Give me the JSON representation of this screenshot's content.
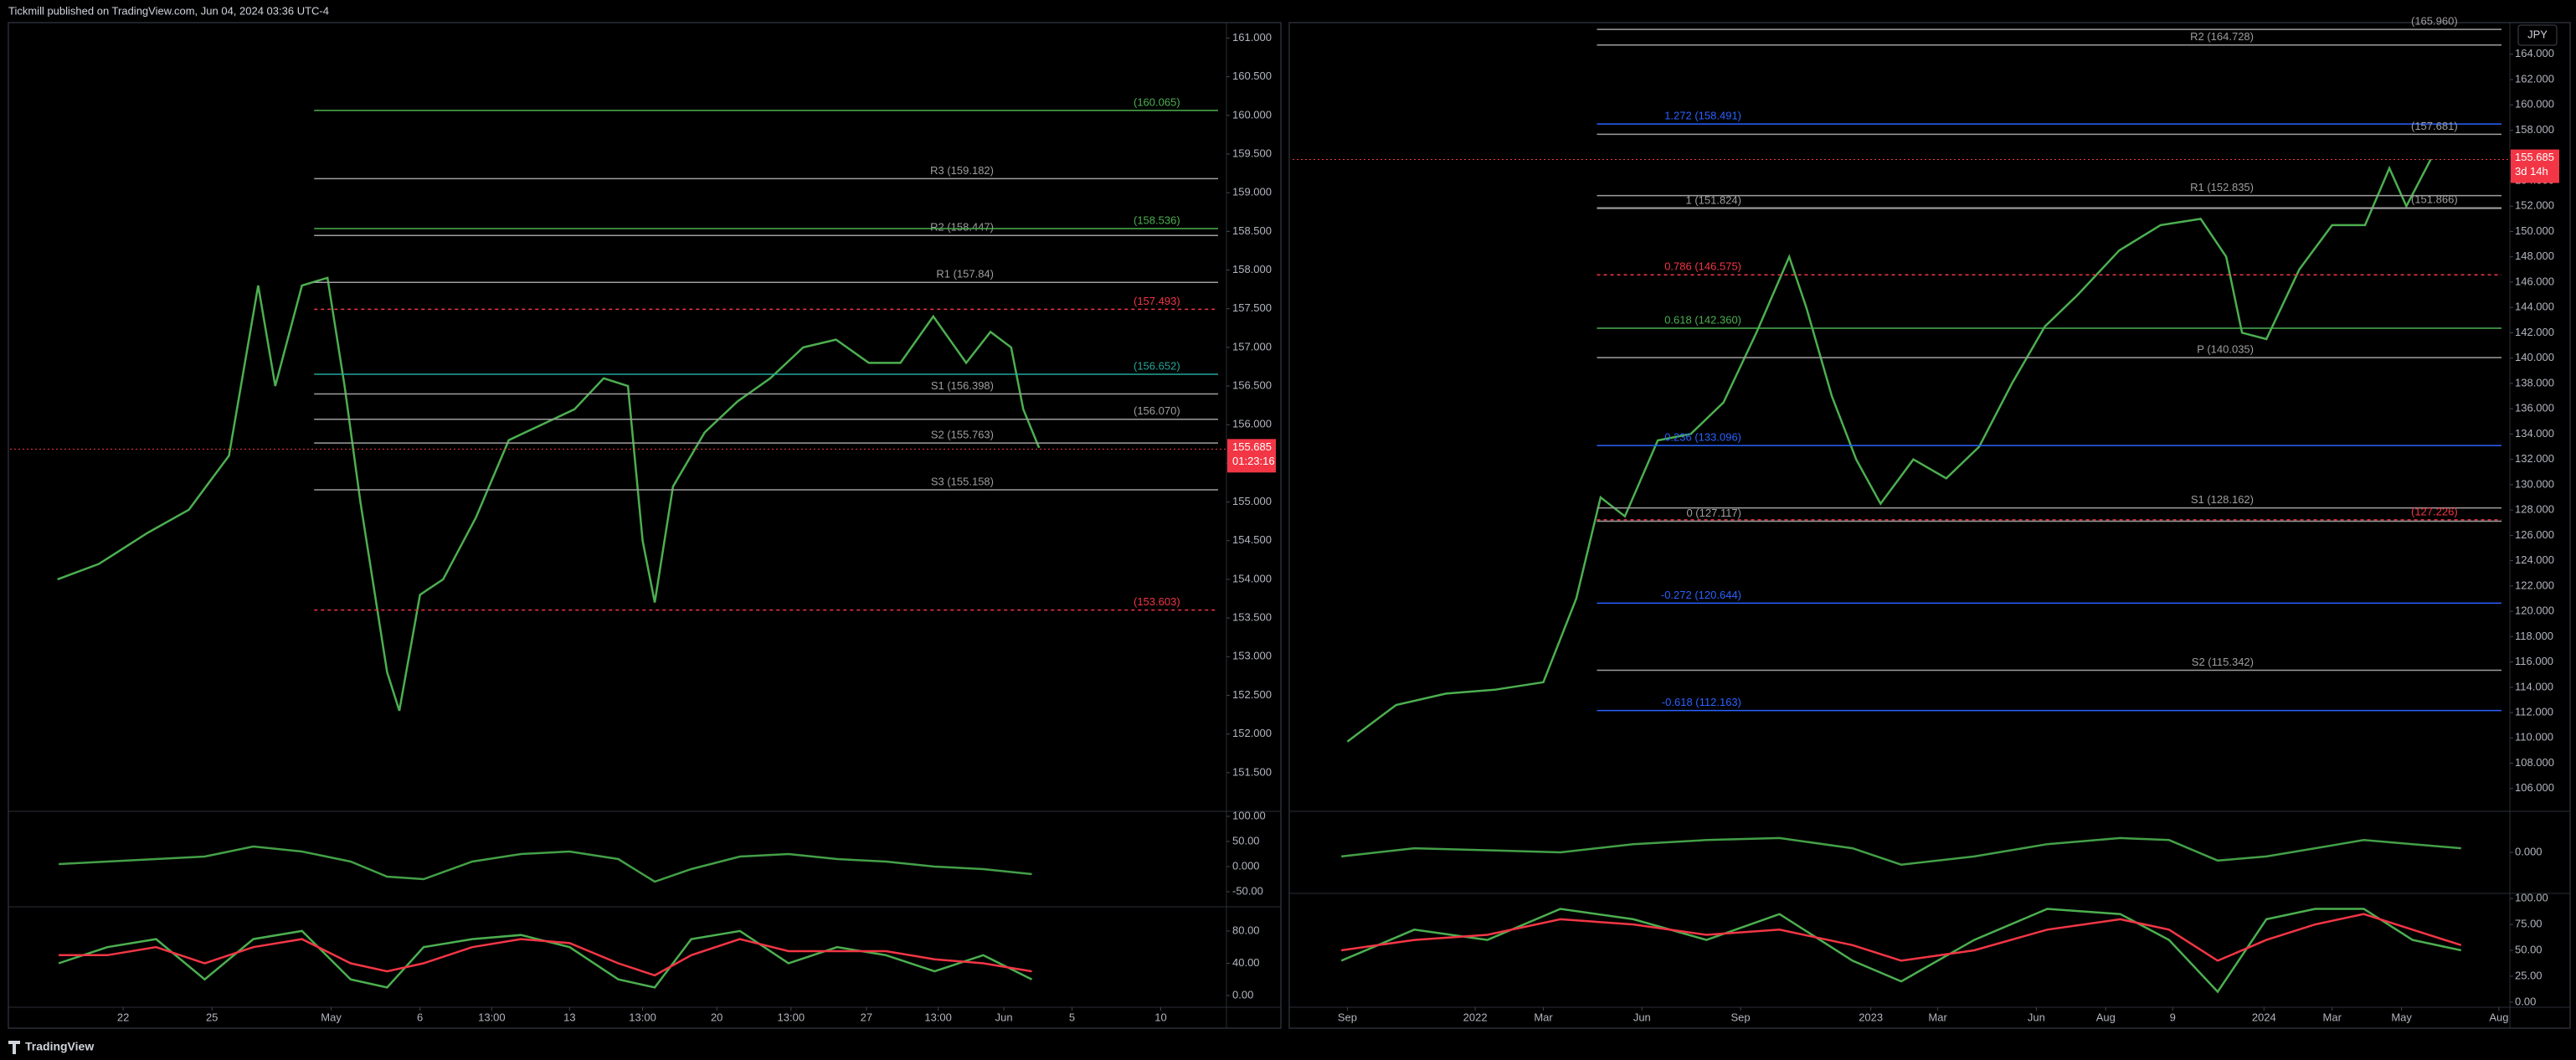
{
  "header": {
    "title": "Tickmill published on TradingView.com, Jun 04, 2024 03:36 UTC-4"
  },
  "footer": {
    "brand": "TradingView"
  },
  "chart_data": [
    {
      "type": "line",
      "xlim": [
        0,
        100
      ],
      "xticks": [
        {
          "value": 9.3,
          "label": "22"
        },
        {
          "value": 16.6,
          "label": "25"
        },
        {
          "value": 26.4,
          "label": "May"
        },
        {
          "value": 33.7,
          "label": "6"
        },
        {
          "value": 39.6,
          "label": "13:00"
        },
        {
          "value": 46.0,
          "label": "13"
        },
        {
          "value": 52.0,
          "label": "13:00"
        },
        {
          "value": 58.1,
          "label": "20"
        },
        {
          "value": 64.2,
          "label": "13:00"
        },
        {
          "value": 70.4,
          "label": "27"
        },
        {
          "value": 76.3,
          "label": "13:00"
        },
        {
          "value": 81.7,
          "label": "Jun"
        },
        {
          "value": 87.3,
          "label": "5"
        },
        {
          "value": 94.6,
          "label": "10"
        }
      ],
      "ylim": [
        151.0,
        161.2
      ],
      "yticks": [
        {
          "value": 151.5,
          "label": "151.500"
        },
        {
          "value": 152,
          "label": "152.000"
        },
        {
          "value": 152.5,
          "label": "152.500"
        },
        {
          "value": 153,
          "label": "153.000"
        },
        {
          "value": 153.5,
          "label": "153.500"
        },
        {
          "value": 154,
          "label": "154.000"
        },
        {
          "value": 154.5,
          "label": "154.500"
        },
        {
          "value": 155,
          "label": "155.000"
        },
        {
          "value": 155.5,
          "label": "155.500"
        },
        {
          "value": 156,
          "label": "156.000"
        },
        {
          "value": 156.5,
          "label": "156.500"
        },
        {
          "value": 157,
          "label": "157.000"
        },
        {
          "value": 157.5,
          "label": "157.500"
        },
        {
          "value": 158,
          "label": "158.000"
        },
        {
          "value": 158.5,
          "label": "158.500"
        },
        {
          "value": 159,
          "label": "159.000"
        },
        {
          "value": 159.5,
          "label": "159.500"
        },
        {
          "value": 160,
          "label": "160.000"
        },
        {
          "value": 160.5,
          "label": "160.500"
        },
        {
          "value": 161,
          "label": "161.000"
        }
      ],
      "grid": false,
      "x": [
        3.9,
        7.3,
        11.3,
        14.7,
        18,
        20.4,
        21.8,
        24,
        26.1,
        27.5,
        28.8,
        31,
        32,
        33.7,
        35.6,
        38.3,
        41,
        43.7,
        46.4,
        48.8,
        50.8,
        52,
        53,
        54.5,
        57.1,
        59.8,
        62.5,
        65.2,
        67.9,
        70.6,
        73.2,
        75.9,
        78.6,
        80.6,
        82.3,
        83.3,
        84.6
      ],
      "series": [
        {
          "color": "#4caf50",
          "values": [
            154.0,
            154.2,
            154.6,
            154.9,
            155.6,
            157.8,
            156.5,
            157.8,
            157.9,
            156.5,
            155.0,
            152.8,
            152.3,
            153.8,
            154.0,
            154.8,
            155.8,
            156.0,
            156.2,
            156.6,
            156.5,
            154.5,
            153.7,
            155.2,
            155.9,
            156.3,
            156.6,
            157.0,
            157.1,
            156.8,
            156.8,
            157.4,
            156.8,
            157.2,
            157.0,
            156.2,
            155.7
          ]
        }
      ],
      "last_price": 155.685,
      "countdown": "01:23:16",
      "pivots": [
        {
          "label": "R3 (159.182)",
          "value": 159.182,
          "color": "#9e9e9e"
        },
        {
          "label": "R2 (158.447)",
          "value": 158.447,
          "color": "#9e9e9e"
        },
        {
          "label": "R1 (157.84)",
          "value": 157.84,
          "color": "#9e9e9e"
        },
        {
          "label": "S1 (156.398)",
          "value": 156.398,
          "color": "#9e9e9e"
        },
        {
          "label": "S2 (155.763)",
          "value": 155.763,
          "color": "#9e9e9e"
        },
        {
          "label": "S3 (155.158)",
          "value": 155.158,
          "color": "#9e9e9e"
        }
      ],
      "marks": [
        {
          "label": "(160.065)",
          "value": 160.065,
          "color": "#4caf50"
        },
        {
          "label": "(158.536)",
          "value": 158.536,
          "color": "#4caf50"
        },
        {
          "label": "(157.493)",
          "value": 157.493,
          "color": "#f23645"
        },
        {
          "label": "(156.652)",
          "value": 156.652,
          "color": "#26a69a"
        },
        {
          "label": "(156.070)",
          "value": 156.07,
          "color": "#9e9e9e"
        },
        {
          "label": "(153.603)",
          "value": 153.603,
          "color": "#f23645"
        }
      ],
      "oscillators": [
        {
          "ylim": [
            -80,
            110
          ],
          "yticks": [
            {
              "value": 100,
              "label": "100.00"
            },
            {
              "value": 50,
              "label": "50.00"
            },
            {
              "value": 0,
              "label": "0.000"
            },
            {
              "value": -50,
              "label": "-50.00"
            }
          ],
          "x": [
            4,
            8,
            12,
            16,
            20,
            24,
            28,
            31,
            34,
            38,
            42,
            46,
            50,
            53,
            56,
            60,
            64,
            68,
            72,
            76,
            80,
            84
          ],
          "series": [
            {
              "color": "#43a047",
              "values": [
                5,
                10,
                15,
                20,
                40,
                30,
                10,
                -20,
                -25,
                10,
                25,
                30,
                15,
                -30,
                -5,
                20,
                25,
                15,
                10,
                0,
                -5,
                -15
              ]
            }
          ]
        },
        {
          "ylim": [
            -14.5,
            110
          ],
          "yticks": [
            {
              "value": 80,
              "label": "80.00"
            },
            {
              "value": 40,
              "label": "40.00"
            },
            {
              "value": 0,
              "label": "0.00"
            }
          ],
          "x": [
            4,
            8,
            12,
            16,
            20,
            24,
            28,
            31,
            34,
            38,
            42,
            46,
            50,
            53,
            56,
            60,
            64,
            68,
            72,
            76,
            80,
            84
          ],
          "series": [
            {
              "color": "#4caf50",
              "values": [
                40,
                60,
                70,
                20,
                70,
                80,
                20,
                10,
                60,
                70,
                75,
                60,
                20,
                10,
                70,
                80,
                40,
                60,
                50,
                30,
                50,
                20
              ]
            },
            {
              "color": "#f23645",
              "values": [
                50,
                50,
                60,
                40,
                60,
                70,
                40,
                30,
                40,
                60,
                70,
                65,
                40,
                25,
                50,
                70,
                55,
                55,
                55,
                45,
                40,
                30
              ]
            }
          ]
        }
      ]
    },
    {
      "type": "line",
      "currency": "JPY",
      "xlim": [
        0,
        100
      ],
      "xticks": [
        {
          "value": 4.5,
          "label": "Sep"
        },
        {
          "value": 15.0,
          "label": "2022"
        },
        {
          "value": 20.6,
          "label": "Mar"
        },
        {
          "value": 28.7,
          "label": "Jun"
        },
        {
          "value": 36.8,
          "label": "Sep"
        },
        {
          "value": 47.5,
          "label": "2023"
        },
        {
          "value": 53.0,
          "label": "Mar"
        },
        {
          "value": 61.1,
          "label": "Jun"
        },
        {
          "value": 66.8,
          "label": "Aug"
        },
        {
          "value": 72.3,
          "label": "9"
        },
        {
          "value": 79.8,
          "label": "2024"
        },
        {
          "value": 85.4,
          "label": "Mar"
        },
        {
          "value": 91.1,
          "label": "May"
        },
        {
          "value": 99.1,
          "label": "Aug"
        }
      ],
      "ylim": [
        104.2,
        166.5
      ],
      "yticks": [
        {
          "value": 106,
          "label": "106.000"
        },
        {
          "value": 108,
          "label": "108.000"
        },
        {
          "value": 110,
          "label": "110.000"
        },
        {
          "value": 112,
          "label": "112.000"
        },
        {
          "value": 114,
          "label": "114.000"
        },
        {
          "value": 116,
          "label": "116.000"
        },
        {
          "value": 118,
          "label": "118.000"
        },
        {
          "value": 120,
          "label": "120.000"
        },
        {
          "value": 122,
          "label": "122.000"
        },
        {
          "value": 124,
          "label": "124.000"
        },
        {
          "value": 126,
          "label": "126.000"
        },
        {
          "value": 128,
          "label": "128.000"
        },
        {
          "value": 130,
          "label": "130.000"
        },
        {
          "value": 132,
          "label": "132.000"
        },
        {
          "value": 134,
          "label": "134.000"
        },
        {
          "value": 136,
          "label": "136.000"
        },
        {
          "value": 138,
          "label": "138.000"
        },
        {
          "value": 140,
          "label": "140.000"
        },
        {
          "value": 142,
          "label": "142.000"
        },
        {
          "value": 144,
          "label": "144.000"
        },
        {
          "value": 146,
          "label": "146.000"
        },
        {
          "value": 148,
          "label": "148.000"
        },
        {
          "value": 150,
          "label": "150.000"
        },
        {
          "value": 152,
          "label": "152.000"
        },
        {
          "value": 154,
          "label": "154.000"
        },
        {
          "value": 156,
          "label": "156.000"
        },
        {
          "value": 158,
          "label": "158.000"
        },
        {
          "value": 160,
          "label": "160.000"
        },
        {
          "value": 162,
          "label": "162.000"
        },
        {
          "value": 164,
          "label": "164.000"
        }
      ],
      "grid": false,
      "x": [
        4.5,
        8.5,
        12.6,
        16.6,
        20.6,
        23.3,
        25.3,
        27.3,
        30,
        32.7,
        35.4,
        38.1,
        40.8,
        42.2,
        44.3,
        46.3,
        48.3,
        51,
        53.7,
        56.4,
        59.1,
        61.8,
        64.5,
        67.9,
        71.3,
        74.6,
        76.7,
        78,
        80,
        82.7,
        85.4,
        88.1,
        90.1,
        91.5,
        93.5
      ],
      "series": [
        {
          "color": "#4caf50",
          "values": [
            109.7,
            112.6,
            113.5,
            113.8,
            114.4,
            121,
            129,
            127.5,
            133.5,
            134,
            136.5,
            142,
            148,
            144,
            137,
            132,
            128.5,
            132,
            130.5,
            133,
            138,
            142.5,
            145,
            148.5,
            150.5,
            151,
            148,
            142,
            141.5,
            147,
            150.5,
            150.5,
            155,
            152,
            155.7
          ]
        }
      ],
      "last_price": 155.685,
      "countdown": "3d 14h",
      "pivots": [
        {
          "label": "R2 (164.728)",
          "value": 164.728,
          "color": "#9e9e9e"
        },
        {
          "label": "R1 (152.835)",
          "value": 152.835,
          "color": "#9e9e9e"
        },
        {
          "label": "P (140.035)",
          "value": 140.035,
          "color": "#9e9e9e"
        },
        {
          "label": "S1 (128.162)",
          "value": 128.162,
          "color": "#9e9e9e"
        },
        {
          "label": "S2 (115.342)",
          "value": 115.342,
          "color": "#9e9e9e"
        }
      ],
      "fibs": [
        {
          "label": "1.272 (158.491)",
          "value": 158.491,
          "color": "#2962ff"
        },
        {
          "label": "1 (151.824)",
          "value": 151.824,
          "color": "#9e9e9e"
        },
        {
          "label": "0.786 (146.575)",
          "value": 146.575,
          "color": "#f23645"
        },
        {
          "label": "0.618 (142.360)",
          "value": 142.36,
          "color": "#4caf50"
        },
        {
          "label": "0.236 (133.096)",
          "value": 133.096,
          "color": "#2962ff"
        },
        {
          "label": "0 (127.117)",
          "value": 127.117,
          "color": "#9e9e9e"
        },
        {
          "label": "-0.272 (120.644)",
          "value": 120.644,
          "color": "#2962ff"
        },
        {
          "label": "-0.618 (112.163)",
          "value": 112.163,
          "color": "#2962ff"
        }
      ],
      "marks": [
        {
          "label": "(165.960)",
          "value": 165.96,
          "color": "#9e9e9e"
        },
        {
          "label": "(157.681)",
          "value": 157.681,
          "color": "#9e9e9e"
        },
        {
          "label": "(151.866)",
          "value": 151.866,
          "color": "#9e9e9e"
        },
        {
          "label": "(127.226)",
          "value": 127.226,
          "color": "#f23645"
        }
      ],
      "oscillators": [
        {
          "ylim": [
            -1,
            1
          ],
          "yticks": [
            {
              "value": 0,
              "label": "0.000"
            }
          ],
          "x": [
            4,
            10,
            16,
            22,
            28,
            34,
            40,
            46,
            50,
            56,
            62,
            68,
            72,
            76,
            80,
            84,
            88,
            92,
            96
          ],
          "series": [
            {
              "color": "#43a047",
              "values": [
                -0.1,
                0.1,
                0.05,
                0,
                0.2,
                0.3,
                0.35,
                0.1,
                -0.3,
                -0.1,
                0.2,
                0.35,
                0.3,
                -0.2,
                -0.1,
                0.1,
                0.3,
                0.2,
                0.1
              ]
            }
          ]
        },
        {
          "ylim": [
            -5,
            105
          ],
          "yticks": [
            {
              "value": 100,
              "label": "100.00"
            },
            {
              "value": 75,
              "label": "75.00"
            },
            {
              "value": 50,
              "label": "50.00"
            },
            {
              "value": 25,
              "label": "25.00"
            },
            {
              "value": 0,
              "label": "0.00"
            }
          ],
          "x": [
            4,
            10,
            16,
            22,
            28,
            34,
            40,
            46,
            50,
            56,
            62,
            68,
            72,
            76,
            80,
            84,
            88,
            92,
            96
          ],
          "series": [
            {
              "color": "#4caf50",
              "values": [
                40,
                70,
                60,
                90,
                80,
                60,
                85,
                40,
                20,
                60,
                90,
                85,
                60,
                10,
                80,
                90,
                90,
                60,
                50
              ]
            },
            {
              "color": "#f23645",
              "values": [
                50,
                60,
                65,
                80,
                75,
                65,
                70,
                55,
                40,
                50,
                70,
                80,
                70,
                40,
                60,
                75,
                85,
                70,
                55
              ]
            }
          ]
        }
      ]
    }
  ]
}
